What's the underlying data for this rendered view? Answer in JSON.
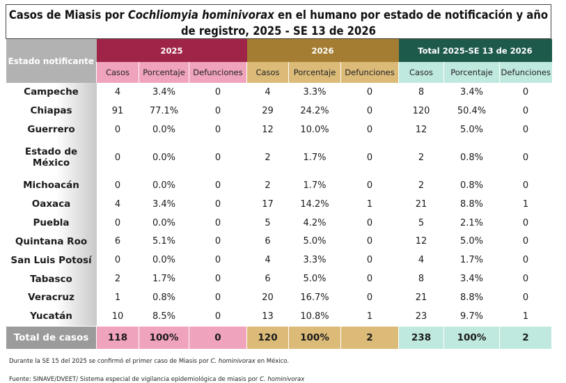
{
  "title": {
    "prefix": "Casos de Miasis por ",
    "species": "Cochliomyia hominivorax",
    "suffix": " en el humano por estado de notificación y año",
    "line2": "de registro, 2025 - SE 13 de 2026"
  },
  "headers": {
    "estado": "Estado notificante",
    "groups": [
      "2025",
      "2026",
      "Total  2025-SE 13 de 2026"
    ],
    "sub": [
      "Casos",
      "Porcentaje",
      "Defunciones"
    ]
  },
  "rows": [
    {
      "estado": "Campeche",
      "v": [
        "4",
        "3.4%",
        "0",
        "4",
        "3.3%",
        "0",
        "8",
        "3.4%",
        "0"
      ]
    },
    {
      "estado": "Chiapas",
      "v": [
        "91",
        "77.1%",
        "0",
        "29",
        "24.2%",
        "0",
        "120",
        "50.4%",
        "0"
      ]
    },
    {
      "estado": "Guerrero",
      "v": [
        "0",
        "0.0%",
        "0",
        "12",
        "10.0%",
        "0",
        "12",
        "5.0%",
        "0"
      ]
    },
    {
      "estado": "Estado de México",
      "v": [
        "0",
        "0.0%",
        "0",
        "2",
        "1.7%",
        "0",
        "2",
        "0.8%",
        "0"
      ]
    },
    {
      "estado": "Michoacán",
      "v": [
        "0",
        "0.0%",
        "0",
        "2",
        "1.7%",
        "0",
        "2",
        "0.8%",
        "0"
      ]
    },
    {
      "estado": "Oaxaca",
      "v": [
        "4",
        "3.4%",
        "0",
        "17",
        "14.2%",
        "1",
        "21",
        "8.8%",
        "1"
      ]
    },
    {
      "estado": "Puebla",
      "v": [
        "0",
        "0.0%",
        "0",
        "5",
        "4.2%",
        "0",
        "5",
        "2.1%",
        "0"
      ]
    },
    {
      "estado": "Quintana Roo",
      "v": [
        "6",
        "5.1%",
        "0",
        "6",
        "5.0%",
        "0",
        "12",
        "5.0%",
        "0"
      ]
    },
    {
      "estado": "San Luis Potosí",
      "v": [
        "0",
        "0.0%",
        "0",
        "4",
        "3.3%",
        "0",
        "4",
        "1.7%",
        "0"
      ]
    },
    {
      "estado": "Tabasco",
      "v": [
        "2",
        "1.7%",
        "0",
        "6",
        "5.0%",
        "0",
        "8",
        "3.4%",
        "0"
      ]
    },
    {
      "estado": "Veracruz",
      "v": [
        "1",
        "0.8%",
        "0",
        "20",
        "16.7%",
        "0",
        "21",
        "8.8%",
        "0"
      ]
    },
    {
      "estado": "Yucatán",
      "v": [
        "10",
        "8.5%",
        "0",
        "13",
        "10.8%",
        "1",
        "23",
        "9.7%",
        "1"
      ]
    }
  ],
  "total": {
    "label": "Total de casos",
    "v": [
      "118",
      "100%",
      "0",
      "120",
      "100%",
      "2",
      "238",
      "100%",
      "2"
    ]
  },
  "notes": {
    "note1_pre": "Durante la SE 15 del 2025 se confirmó el primer caso de Miasis por ",
    "note1_species": "C. hominivorax",
    "note1_post": " en México.",
    "note2_pre": "Fuente: SINAVE/DVEET/ Sistema especial de vigilancia epidemiológica de miasis por ",
    "note2_species": "C. hominivorax"
  },
  "colors": {
    "y2025_header": "#9f2548",
    "y2025_light": "#f0a3bc",
    "y2026_header": "#a57d32",
    "y2026_light": "#dcbb79",
    "total_header": "#1e5a4b",
    "total_light": "#bfe9de",
    "estado_header": "#b2b2b2"
  }
}
